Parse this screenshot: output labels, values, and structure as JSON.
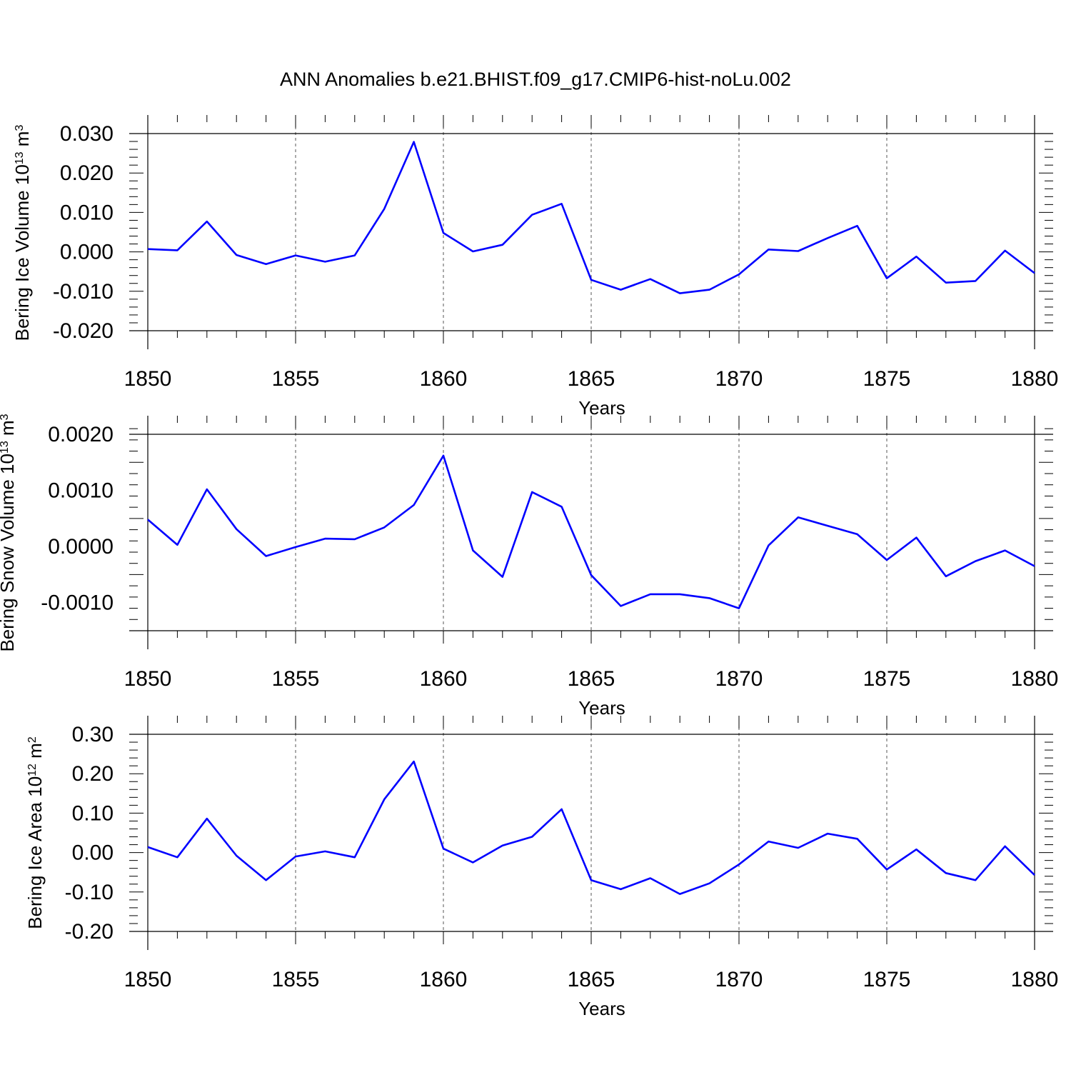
{
  "figure": {
    "title": "ANN Anomalies b.e21.BHIST.f09_g17.CMIP6-hist-noLu.002"
  },
  "chart_data": [
    {
      "type": "line",
      "xlabel": "Years",
      "ylabel": "Bering Ice Volume 10^13 m^3",
      "ylabel_parts": {
        "text": "Bering Ice Volume 10",
        "exp": "13",
        "unit": " m",
        "unit_exp": "3"
      },
      "xlim": [
        1850,
        1880
      ],
      "ylim": [
        -0.02,
        0.03
      ],
      "xticks": [
        1850,
        1855,
        1860,
        1865,
        1870,
        1875,
        1880
      ],
      "yticks": [
        -0.02,
        -0.01,
        0.0,
        0.01,
        0.02,
        0.03
      ],
      "ytick_labels": [
        "-0.020",
        "-0.010",
        "0.000",
        "0.010",
        "0.020",
        "0.030"
      ],
      "vertical_grid": "dashed at major x ticks",
      "line_color": "#0000ff",
      "x": [
        1850,
        1851,
        1852,
        1853,
        1854,
        1855,
        1856,
        1857,
        1858,
        1859,
        1860,
        1861,
        1862,
        1863,
        1864,
        1865,
        1866,
        1867,
        1868,
        1869,
        1870,
        1871,
        1872,
        1873,
        1874,
        1875,
        1876,
        1877,
        1878,
        1879,
        1880
      ],
      "y": [
        0.0007,
        0.0004,
        0.0077,
        -0.0008,
        -0.0031,
        -0.0009,
        -0.0025,
        -0.0009,
        0.0109,
        0.0279,
        0.0048,
        0.0001,
        0.0018,
        0.0094,
        0.0122,
        -0.0071,
        -0.0096,
        -0.0069,
        -0.0105,
        -0.0096,
        -0.0057,
        0.0006,
        0.0002,
        0.0035,
        0.0066,
        -0.0067,
        -0.0012,
        -0.0078,
        -0.0074,
        0.0003,
        -0.0054
      ]
    },
    {
      "type": "line",
      "xlabel": "Years",
      "ylabel": "Bering Snow Volume 10^13 m^3",
      "ylabel_parts": {
        "text": "Bering Snow Volume 10",
        "exp": "13",
        "unit": " m",
        "unit_exp": "3"
      },
      "xlim": [
        1850,
        1880
      ],
      "ylim": [
        -0.0015,
        0.002
      ],
      "xticks": [
        1850,
        1855,
        1860,
        1865,
        1870,
        1875,
        1880
      ],
      "yticks": [
        -0.001,
        0.0,
        0.001,
        0.002
      ],
      "ytick_labels": [
        "-0.0010",
        "0.0000",
        "0.0010",
        "0.0020"
      ],
      "vertical_grid": "dashed at major x ticks",
      "line_color": "#0000ff",
      "x": [
        1850,
        1851,
        1852,
        1853,
        1854,
        1855,
        1856,
        1857,
        1858,
        1859,
        1860,
        1861,
        1862,
        1863,
        1864,
        1865,
        1866,
        1867,
        1868,
        1869,
        1870,
        1871,
        1872,
        1873,
        1874,
        1875,
        1876,
        1877,
        1878,
        1879,
        1880
      ],
      "y": [
        0.00048,
        3e-05,
        0.00102,
        0.00031,
        -0.00017,
        -1e-05,
        0.00014,
        0.00013,
        0.00034,
        0.00074,
        0.00162,
        -7e-05,
        -0.00054,
        0.00097,
        0.00071,
        -0.00051,
        -0.00106,
        -0.00085,
        -0.00085,
        -0.00092,
        -0.0011,
        2e-05,
        0.00052,
        0.00037,
        0.00022,
        -0.00024,
        0.00016,
        -0.00053,
        -0.00026,
        -7e-05,
        -0.00035
      ]
    },
    {
      "type": "line",
      "xlabel": "Years",
      "ylabel": "Bering Ice Area 10^12 m^2",
      "ylabel_parts": {
        "text": "Bering Ice Area 10",
        "exp": "12",
        "unit": " m",
        "unit_exp": "2"
      },
      "xlim": [
        1850,
        1880
      ],
      "ylim": [
        -0.2,
        0.3
      ],
      "xticks": [
        1850,
        1855,
        1860,
        1865,
        1870,
        1875,
        1880
      ],
      "yticks": [
        -0.2,
        -0.1,
        0.0,
        0.1,
        0.2,
        0.3
      ],
      "ytick_labels": [
        "-0.20",
        "-0.10",
        "0.00",
        "0.10",
        "0.20",
        "0.30"
      ],
      "vertical_grid": "dashed at major x ticks",
      "line_color": "#0000ff",
      "x": [
        1850,
        1851,
        1852,
        1853,
        1854,
        1855,
        1856,
        1857,
        1858,
        1859,
        1860,
        1861,
        1862,
        1863,
        1864,
        1865,
        1866,
        1867,
        1868,
        1869,
        1870,
        1871,
        1872,
        1873,
        1874,
        1875,
        1876,
        1877,
        1878,
        1879,
        1880
      ],
      "y": [
        0.014,
        -0.012,
        0.086,
        -0.008,
        -0.07,
        -0.01,
        0.003,
        -0.012,
        0.135,
        0.231,
        0.01,
        -0.025,
        0.018,
        0.04,
        0.11,
        -0.07,
        -0.093,
        -0.065,
        -0.105,
        -0.078,
        -0.03,
        0.028,
        0.012,
        0.048,
        0.035,
        -0.043,
        0.008,
        -0.052,
        -0.07,
        0.016,
        -0.057
      ]
    }
  ]
}
